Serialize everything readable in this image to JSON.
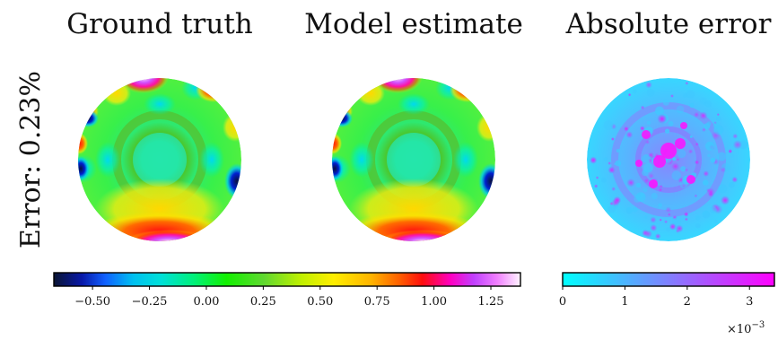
{
  "chart_data": {
    "type": "heatmap",
    "row_label": "Error: 0.23%",
    "panels": [
      {
        "title": "Ground truth",
        "colormap": "gist_ncar-like",
        "clim": [
          -0.67,
          1.38
        ]
      },
      {
        "title": "Model estimate",
        "colormap": "gist_ncar-like",
        "clim": [
          -0.67,
          1.38
        ]
      },
      {
        "title": "Absolute error",
        "colormap": "cool",
        "clim": [
          0,
          0.0034
        ]
      }
    ],
    "colorbars": [
      {
        "name": "field",
        "vmin": -0.67,
        "vmax": 1.38,
        "ticks": [
          -0.5,
          -0.25,
          0.0,
          0.25,
          0.5,
          0.75,
          1.0,
          1.25
        ],
        "tick_labels": [
          "−0.50",
          "−0.25",
          "0.00",
          "0.25",
          "0.50",
          "0.75",
          "1.00",
          "1.25"
        ]
      },
      {
        "name": "error",
        "vmin": 0,
        "vmax": 3.4,
        "scale_text": "×10",
        "scale_exp": "−3",
        "ticks": [
          0,
          1,
          2,
          3
        ],
        "tick_labels": [
          "0",
          "1",
          "2",
          "3"
        ]
      }
    ]
  }
}
